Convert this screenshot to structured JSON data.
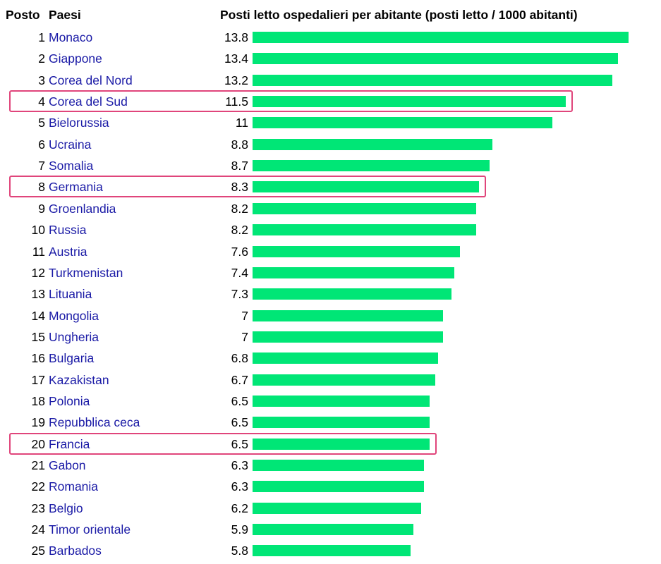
{
  "header": {
    "rank_label": "Posto",
    "country_label": "Paesi",
    "metric_label": "Posti letto ospedalieri per abitante (posti letto / 1000 abitanti)"
  },
  "colors": {
    "bar": "#00e676",
    "link": "#1a1aa6",
    "highlight": "#e0457b"
  },
  "chart_data": {
    "type": "bar",
    "orientation": "horizontal",
    "title": "Posti letto ospedalieri per abitante (posti letto / 1000 abitanti)",
    "xlim": [
      0,
      13.8
    ],
    "grid": false,
    "legend": "none",
    "highlighted_ranks": [
      4,
      8,
      20
    ],
    "rows": [
      {
        "rank": "1",
        "country": "Monaco",
        "value": 13.8,
        "label": "13.8"
      },
      {
        "rank": "2",
        "country": "Giappone",
        "value": 13.4,
        "label": "13.4"
      },
      {
        "rank": "3",
        "country": "Corea del Nord",
        "value": 13.2,
        "label": "13.2"
      },
      {
        "rank": "4",
        "country": "Corea del Sud",
        "value": 11.5,
        "label": "11.5"
      },
      {
        "rank": "5",
        "country": "Bielorussia",
        "value": 11,
        "label": "11"
      },
      {
        "rank": "6",
        "country": "Ucraina",
        "value": 8.8,
        "label": "8.8"
      },
      {
        "rank": "7",
        "country": "Somalia",
        "value": 8.7,
        "label": "8.7"
      },
      {
        "rank": "8",
        "country": "Germania",
        "value": 8.3,
        "label": "8.3"
      },
      {
        "rank": "9",
        "country": "Groenlandia",
        "value": 8.2,
        "label": "8.2"
      },
      {
        "rank": "10",
        "country": "Russia",
        "value": 8.2,
        "label": "8.2"
      },
      {
        "rank": "11",
        "country": "Austria",
        "value": 7.6,
        "label": "7.6"
      },
      {
        "rank": "12",
        "country": "Turkmenistan",
        "value": 7.4,
        "label": "7.4"
      },
      {
        "rank": "13",
        "country": "Lituania",
        "value": 7.3,
        "label": "7.3"
      },
      {
        "rank": "14",
        "country": "Mongolia",
        "value": 7,
        "label": "7"
      },
      {
        "rank": "15",
        "country": "Ungheria",
        "value": 7,
        "label": "7"
      },
      {
        "rank": "16",
        "country": "Bulgaria",
        "value": 6.8,
        "label": "6.8"
      },
      {
        "rank": "17",
        "country": "Kazakistan",
        "value": 6.7,
        "label": "6.7"
      },
      {
        "rank": "18",
        "country": "Polonia",
        "value": 6.5,
        "label": "6.5"
      },
      {
        "rank": "19",
        "country": "Repubblica ceca",
        "value": 6.5,
        "label": "6.5"
      },
      {
        "rank": "20",
        "country": "Francia",
        "value": 6.5,
        "label": "6.5"
      },
      {
        "rank": "21",
        "country": "Gabon",
        "value": 6.3,
        "label": "6.3"
      },
      {
        "rank": "22",
        "country": "Romania",
        "value": 6.3,
        "label": "6.3"
      },
      {
        "rank": "23",
        "country": "Belgio",
        "value": 6.2,
        "label": "6.2"
      },
      {
        "rank": "24",
        "country": "Timor orientale",
        "value": 5.9,
        "label": "5.9"
      },
      {
        "rank": "25",
        "country": "Barbados",
        "value": 5.8,
        "label": "5.8"
      }
    ]
  }
}
